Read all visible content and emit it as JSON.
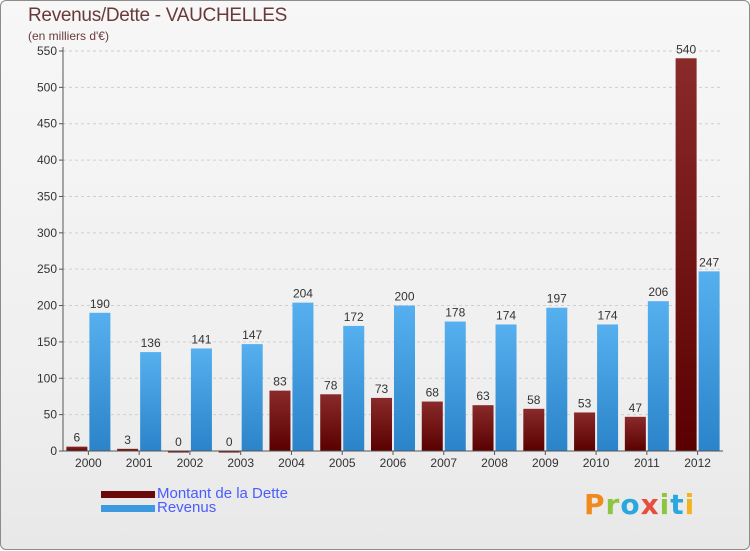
{
  "title": "Revenus/Dette - VAUCHELLES",
  "subtitle": "(en milliers d'€)",
  "colors": {
    "debt": "#6b0a0a",
    "revenue": "#3d9ae0",
    "axis": "#555555",
    "grid": "#cfcfcf"
  },
  "legend": {
    "debt_label": "Montant de la Dette",
    "revenue_label": "Revenus"
  },
  "brand": {
    "letters": [
      "P",
      "r",
      "o",
      "x",
      "i",
      "t",
      "i"
    ],
    "colors": [
      "#f08a1c",
      "#8cc63f",
      "#2aa7df",
      "#e84c3d",
      "#8cc63f",
      "#2aa7df",
      "#f2b41c"
    ]
  },
  "chart_data": {
    "type": "bar",
    "title": "Revenus/Dette - VAUCHELLES",
    "ylabel": "(en milliers d'€)",
    "xlabel": "",
    "ylim": [
      0,
      550
    ],
    "yticks": [
      0,
      50,
      100,
      150,
      200,
      250,
      300,
      350,
      400,
      450,
      500,
      550
    ],
    "categories": [
      "2000",
      "2001",
      "2002",
      "2003",
      "2004",
      "2005",
      "2006",
      "2007",
      "2008",
      "2009",
      "2010",
      "2011",
      "2012"
    ],
    "series": [
      {
        "name": "Montant de la Dette",
        "values": [
          6,
          3,
          0,
          0,
          83,
          78,
          73,
          68,
          63,
          58,
          53,
          47,
          540
        ]
      },
      {
        "name": "Revenus",
        "values": [
          190,
          136,
          141,
          147,
          204,
          172,
          200,
          178,
          174,
          197,
          174,
          206,
          247
        ]
      }
    ]
  }
}
